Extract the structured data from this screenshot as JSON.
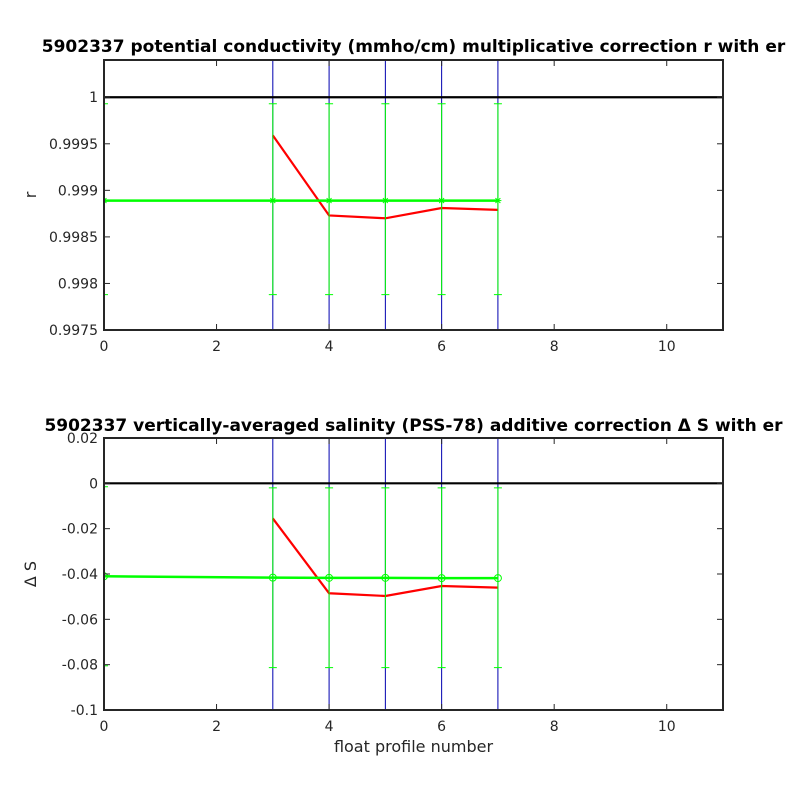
{
  "chart_data": [
    {
      "type": "line",
      "title": "5902337 potential conductivity (mmho/cm) multiplicative correction r with er",
      "xlabel": "",
      "ylabel": "r",
      "xlim": [
        0,
        11
      ],
      "ylim": [
        0.9975,
        1.0004
      ],
      "x_ticks": [
        0,
        2,
        4,
        6,
        8,
        10
      ],
      "x_tick_labels": [
        "0",
        "2",
        "4",
        "6",
        "8",
        "10"
      ],
      "y_ticks": [
        0.9975,
        0.998,
        0.9985,
        0.999,
        0.9995,
        1.0
      ],
      "y_tick_labels": [
        "0.9975",
        "0.998",
        "0.9985",
        "0.999",
        "0.9995",
        "1"
      ],
      "reference_line": 1.0,
      "profile_markers_x": [
        0,
        3,
        4,
        5,
        6,
        7
      ],
      "series": [
        {
          "color": "#ff0000",
          "x": [
            3,
            4,
            5,
            6,
            7
          ],
          "y": [
            0.99959,
            0.99873,
            0.9987,
            0.99881,
            0.99879
          ]
        },
        {
          "color": "#00ff00",
          "marker": "*",
          "x": [
            0,
            3,
            4,
            5,
            6,
            7
          ],
          "y": [
            0.99889,
            0.99889,
            0.99889,
            0.99889,
            0.99889,
            0.99889
          ],
          "err_low": [
            0.99788,
            0.99788,
            0.99788,
            0.99788,
            0.99788,
            0.99788
          ],
          "err_high": [
            0.99993,
            0.99993,
            0.99993,
            0.99993,
            0.99993,
            0.99993
          ]
        }
      ]
    },
    {
      "type": "line",
      "title": "5902337 vertically-averaged salinity (PSS-78) additive correction Δ S with er",
      "xlabel": "float profile number",
      "ylabel": "Δ S",
      "xlim": [
        0,
        11
      ],
      "ylim": [
        -0.1,
        0.02
      ],
      "x_ticks": [
        0,
        2,
        4,
        6,
        8,
        10
      ],
      "x_tick_labels": [
        "0",
        "2",
        "4",
        "6",
        "8",
        "10"
      ],
      "y_ticks": [
        -0.1,
        -0.08,
        -0.06,
        -0.04,
        -0.02,
        0,
        0.02
      ],
      "y_tick_labels": [
        "-0.1",
        "-0.08",
        "-0.06",
        "-0.04",
        "-0.02",
        "0",
        "0.02"
      ],
      "reference_line": 0,
      "profile_markers_x": [
        0,
        3,
        4,
        5,
        6,
        7
      ],
      "series": [
        {
          "color": "#ff0000",
          "x": [
            3,
            4,
            5,
            6,
            7
          ],
          "y": [
            -0.0155,
            -0.0485,
            -0.0497,
            -0.0453,
            -0.046
          ]
        },
        {
          "color": "#00ff00",
          "marker": "o",
          "x": [
            0,
            3,
            4,
            5,
            6,
            7
          ],
          "y": [
            -0.041,
            -0.0416,
            -0.0417,
            -0.0417,
            -0.0418,
            -0.0418
          ],
          "err_low": [
            -0.0805,
            -0.0813,
            -0.0813,
            -0.0813,
            -0.0813,
            -0.0813
          ],
          "err_high": [
            -0.0015,
            -0.002,
            -0.002,
            -0.002,
            -0.002,
            -0.002
          ]
        }
      ]
    }
  ]
}
